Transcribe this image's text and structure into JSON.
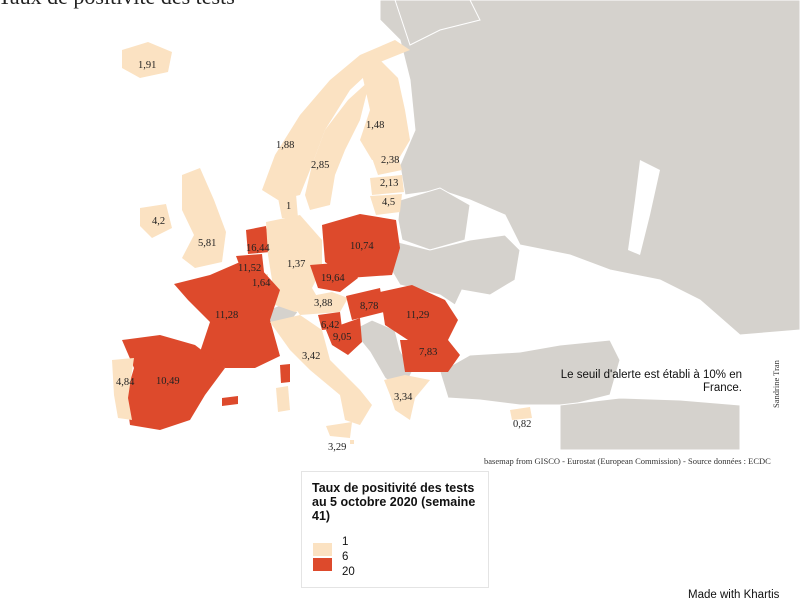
{
  "title": "Taux de positivité des tests",
  "colors": {
    "land_other": "#d5d2cd",
    "border": "#ffffff",
    "low": "#fbe2c2",
    "high": "#dd4a2c",
    "outline": "#e6e2dc"
  },
  "legend": {
    "title": "Taux de positivité des tests au 5 octobre 2020 (semaine 41)",
    "breaks": [
      "1",
      "6",
      "20"
    ],
    "classes": [
      {
        "from": "1",
        "to": "6",
        "color": "#fbe2c2"
      },
      {
        "from": "6",
        "to": "20",
        "color": "#dd4a2c"
      }
    ]
  },
  "annotation": "Le seuil d'alerte est établi à 10% en France.",
  "source": "basemap from GISCO - Eurostat (European Commission) - Source données : ECDC",
  "author": "Sandrine Tran",
  "credit": "Made with Khartis",
  "regions": [
    {
      "id": "IS",
      "value": "1,91",
      "class": "low"
    },
    {
      "id": "NO",
      "value": "1,88",
      "class": "low"
    },
    {
      "id": "SE",
      "value": "2,85",
      "class": "low"
    },
    {
      "id": "FI",
      "value": "1,48",
      "class": "low"
    },
    {
      "id": "EE",
      "value": "2,38",
      "class": "low"
    },
    {
      "id": "LV",
      "value": "2,13",
      "class": "low"
    },
    {
      "id": "LT",
      "value": "4,5",
      "class": "low"
    },
    {
      "id": "DK",
      "value": "1",
      "class": "low"
    },
    {
      "id": "IE",
      "value": "4,2",
      "class": "low"
    },
    {
      "id": "UK",
      "value": "5,81",
      "class": "low"
    },
    {
      "id": "NL",
      "value": "16,44",
      "class": "high"
    },
    {
      "id": "BE",
      "value": "11,52",
      "class": "high"
    },
    {
      "id": "LU",
      "value": "1,64",
      "class": "low"
    },
    {
      "id": "DE",
      "value": "1,37",
      "class": "low"
    },
    {
      "id": "PL",
      "value": "10,74",
      "class": "high"
    },
    {
      "id": "CZ",
      "value": "19,64",
      "class": "high"
    },
    {
      "id": "AT",
      "value": "3,88",
      "class": "low"
    },
    {
      "id": "HU",
      "value": "8,78",
      "class": "high"
    },
    {
      "id": "SI",
      "value": "6,42",
      "class": "high"
    },
    {
      "id": "HR",
      "value": "9,05",
      "class": "high"
    },
    {
      "id": "RO",
      "value": "11,29",
      "class": "high"
    },
    {
      "id": "BG",
      "value": "7,83",
      "class": "high"
    },
    {
      "id": "FR",
      "value": "11,28",
      "class": "high"
    },
    {
      "id": "IT",
      "value": "3,42",
      "class": "low"
    },
    {
      "id": "ES",
      "value": "10,49",
      "class": "high"
    },
    {
      "id": "PT",
      "value": "4,84",
      "class": "low"
    },
    {
      "id": "GR",
      "value": "3,34",
      "class": "low"
    },
    {
      "id": "MT",
      "value": "3,29",
      "class": "low"
    },
    {
      "id": "CY",
      "value": "0,82",
      "class": "low"
    }
  ]
}
